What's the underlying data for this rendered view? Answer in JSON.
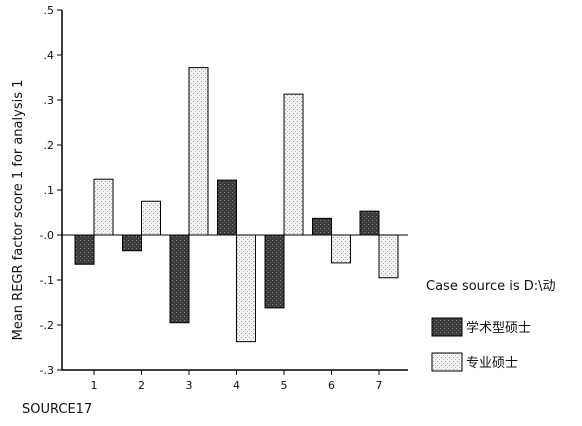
{
  "chart_data": {
    "type": "bar",
    "categories": [
      "1",
      "2",
      "3",
      "4",
      "5",
      "6",
      "7"
    ],
    "series": [
      {
        "name": "学术型硕士",
        "values": [
          -0.065,
          -0.035,
          -0.195,
          0.122,
          -0.162,
          0.037,
          0.053
        ],
        "pattern": "dark-stipple",
        "color": "#3a3a3a"
      },
      {
        "name": "专业硕士",
        "values": [
          0.124,
          0.075,
          0.372,
          -0.237,
          0.313,
          -0.062,
          -0.095
        ],
        "pattern": "light-stipple",
        "color": "#e8e8e8"
      }
    ],
    "xlabel": "SOURCE17",
    "ylabel": "Mean REGR factor score   1 for analysis  1",
    "ylim": [
      -0.3,
      0.5
    ],
    "yticks": [
      ".5",
      ".4",
      ".3",
      ".2",
      ".1",
      "-.0",
      "-.1",
      "-.2",
      "-.3"
    ],
    "grid": false,
    "legend": {
      "title": "Case source is D:\\动",
      "position": "right"
    }
  }
}
